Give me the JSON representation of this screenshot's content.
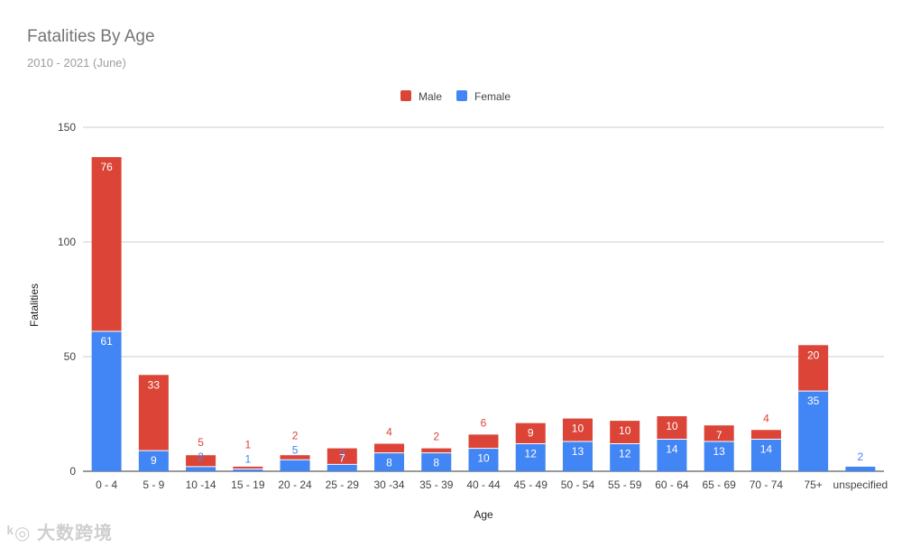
{
  "chart_data": {
    "type": "bar",
    "stacked": true,
    "title": "Fatalities By Age",
    "subtitle": "2010 - 2021 (June)",
    "xlabel": "Age",
    "ylabel": "Fatalities",
    "ylim": [
      0,
      150
    ],
    "yticks": [
      "0",
      "50",
      "100",
      "150"
    ],
    "grid": true,
    "legend_position": "top",
    "categories": [
      "0 - 4",
      "5 - 9",
      "10 -14",
      "15 - 19",
      "20 - 24",
      "25 - 29",
      "30 -34",
      "35 - 39",
      "40 - 44",
      "45 - 49",
      "50 - 54",
      "55 - 59",
      "60 - 64",
      "65 - 69",
      "70 - 74",
      "75+",
      "unspecified"
    ],
    "series": [
      {
        "name": "Female",
        "color": "#4285f4",
        "values": [
          61,
          9,
          2,
          1,
          5,
          3,
          8,
          8,
          10,
          12,
          13,
          12,
          14,
          13,
          14,
          35,
          2
        ]
      },
      {
        "name": "Male",
        "color": "#db4437",
        "values": [
          76,
          33,
          5,
          1,
          2,
          7,
          4,
          2,
          6,
          9,
          10,
          10,
          10,
          7,
          4,
          20,
          0
        ]
      }
    ],
    "legend": [
      "Male",
      "Female"
    ]
  },
  "watermark": "大数跨境"
}
